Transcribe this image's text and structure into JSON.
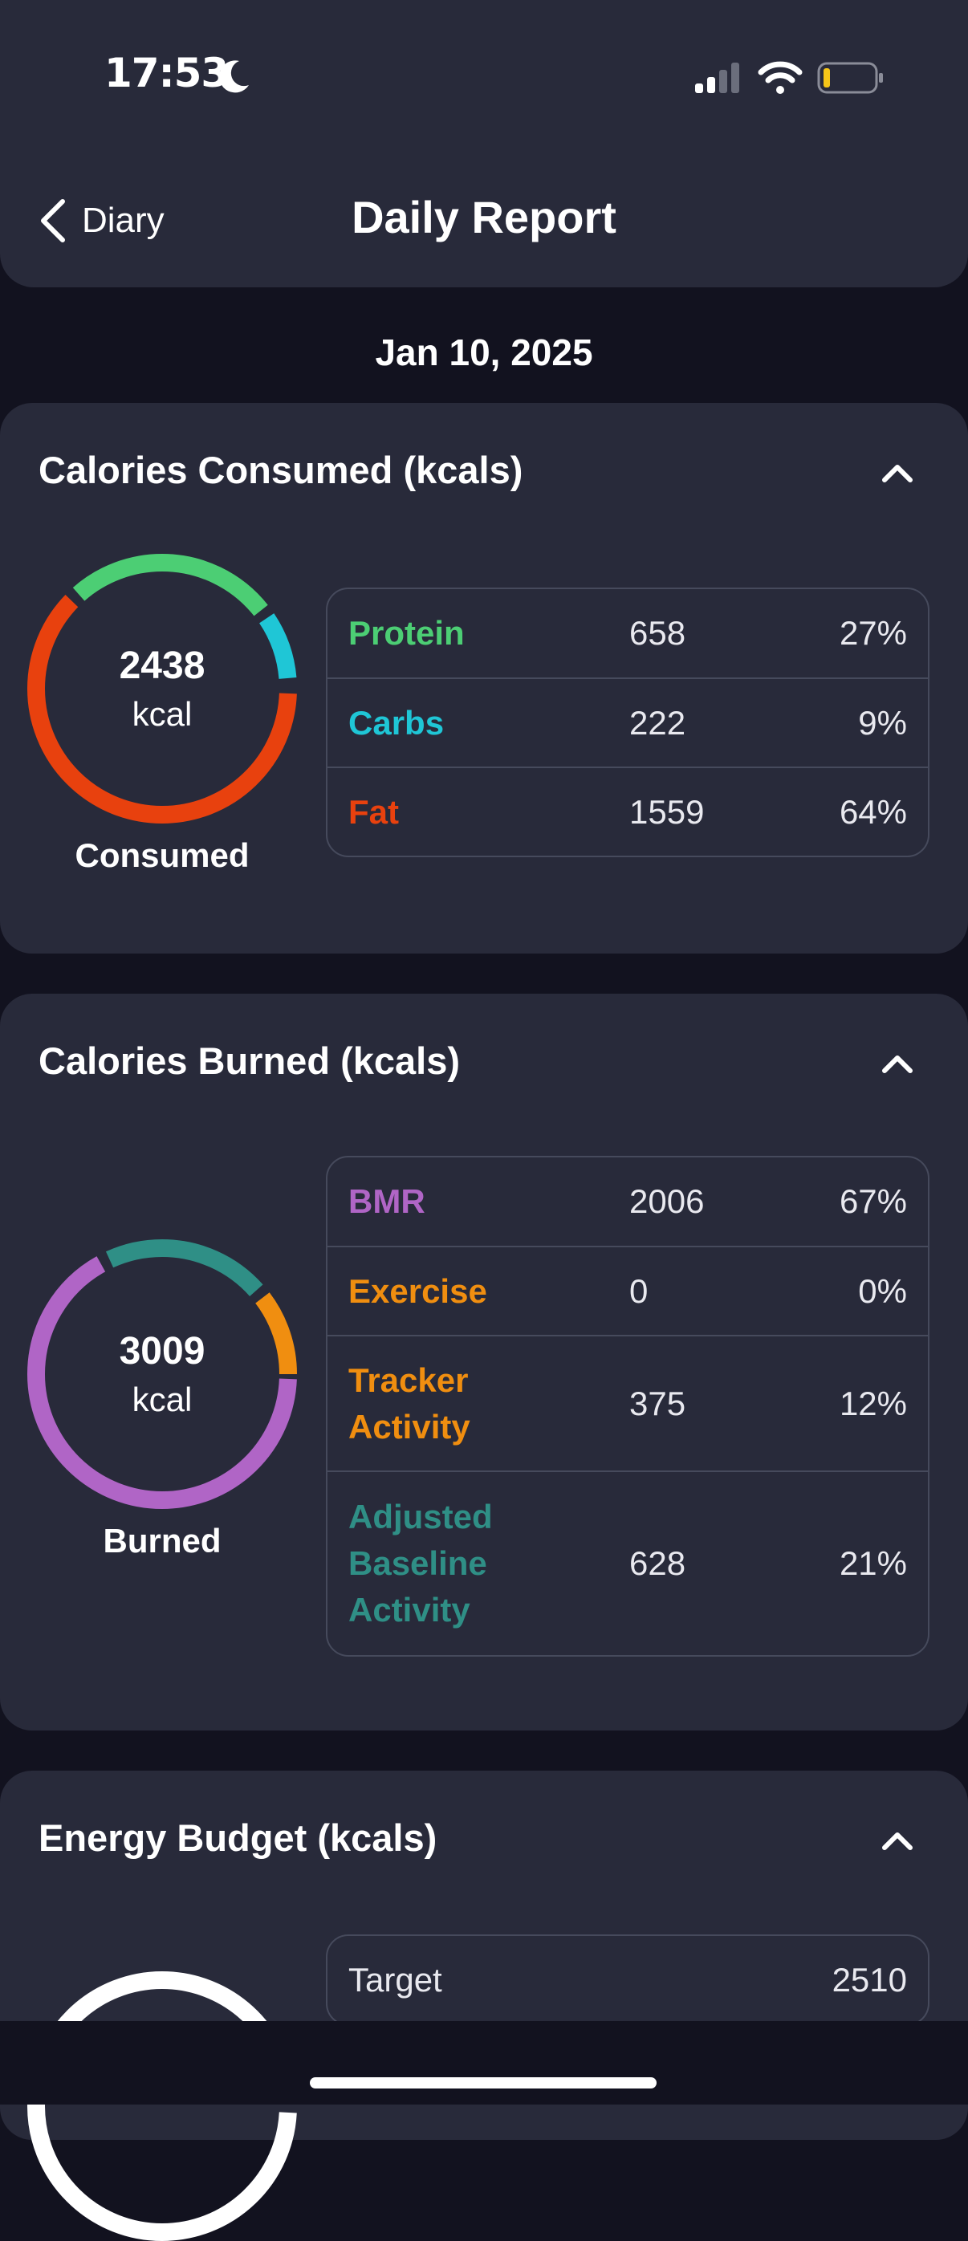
{
  "status_bar": {
    "time": "17:53"
  },
  "header": {
    "back_label": "Diary",
    "title": "Daily Report"
  },
  "date": "Jan 10, 2025",
  "colors": {
    "protein": "#4cce74",
    "carbs": "#1fc6d6",
    "fat": "#e8410e",
    "bmr": "#b065c6",
    "exercise": "#f08e10",
    "tracker": "#f08e10",
    "baseline": "#2f8f86",
    "budget_ring": "#ffffff"
  },
  "consumed": {
    "title": "Calories Consumed (kcals)",
    "total": "2438",
    "unit": "kcal",
    "label": "Consumed",
    "rows": [
      {
        "name": "Protein",
        "value": "658",
        "percent": "27%"
      },
      {
        "name": "Carbs",
        "value": "222",
        "percent": "9%"
      },
      {
        "name": "Fat",
        "value": "1559",
        "percent": "64%"
      }
    ]
  },
  "burned": {
    "title": "Calories Burned (kcals)",
    "total": "3009",
    "unit": "kcal",
    "label": "Burned",
    "rows": [
      {
        "name": "BMR",
        "value": "2006",
        "percent": "67%"
      },
      {
        "name": "Exercise",
        "value": "0",
        "percent": "0%"
      },
      {
        "name": "Tracker Activity",
        "value": "375",
        "percent": "12%"
      },
      {
        "name": "Adjusted Baseline Activity",
        "value": "628",
        "percent": "21%"
      }
    ]
  },
  "budget": {
    "title": "Energy Budget (kcals)",
    "rows": [
      {
        "name": "Target",
        "value": "2510"
      }
    ]
  }
}
